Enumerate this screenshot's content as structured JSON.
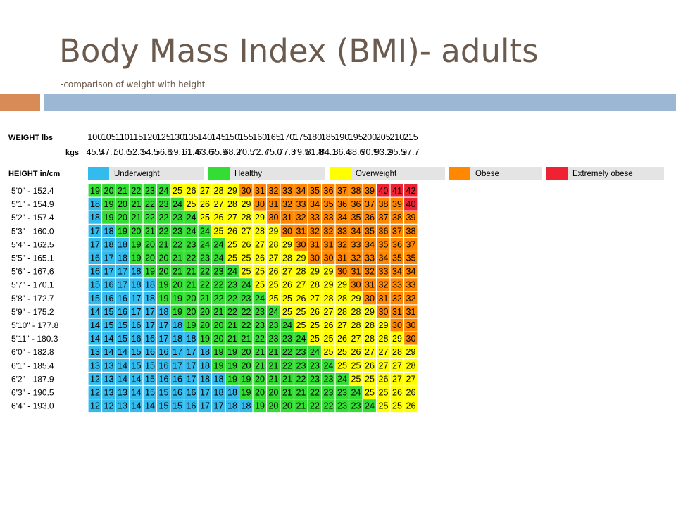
{
  "slide": {
    "title": "Body Mass Index (BMI)- adults",
    "subtitle": "-comparison of weight with height"
  },
  "colors": {
    "title_text": "#6b5a4e",
    "accent_left": "#d88a57",
    "accent_bar": "#9bb7d4",
    "vertical_line": "#c6d4e3"
  },
  "chart_data": {
    "type": "table",
    "row_label_headers": {
      "weight_lbs": "WEIGHT lbs",
      "weight_kgs": "kgs",
      "height": "HEIGHT in/cm"
    },
    "weights_lbs": [
      "100",
      "105",
      "110",
      "115",
      "120",
      "125",
      "130",
      "135",
      "140",
      "145",
      "150",
      "155",
      "160",
      "165",
      "170",
      "175",
      "180",
      "185",
      "190",
      "195",
      "200",
      "205",
      "210",
      "215"
    ],
    "weights_kgs": [
      "45.5",
      "47.7",
      "50.0",
      "52.3",
      "54.5",
      "56.8",
      "59.1",
      "61.4",
      "63.6",
      "65.9",
      "68.2",
      "70.5",
      "72.7",
      "75.0",
      "77.3",
      "79.5",
      "81.8",
      "84.1",
      "86.4",
      "88.6",
      "90.9",
      "93.2",
      "95.5",
      "97.7"
    ],
    "legend": [
      {
        "name": "Underweight",
        "color": "#33bbee"
      },
      {
        "name": "Healthy",
        "color": "#33dd33"
      },
      {
        "name": "Overweight",
        "color": "#ffff00"
      },
      {
        "name": "Obese",
        "color": "#ff8800"
      },
      {
        "name": "Extremely obese",
        "color": "#ee2233"
      }
    ],
    "heights": [
      "5'0\"  -  152.4",
      "5'1\"  -  154.9",
      "5'2\"  -  157.4",
      "5'3\"  -  160.0",
      "5'4\"  -  162.5",
      "5'5\"  -  165.1",
      "5'6\"  -  167.6",
      "5'7\"  -  170.1",
      "5'8\"  -  172.7",
      "5'9\"  -  175.2",
      "5'10\" - 177.8",
      "5'11\" - 180.3",
      "6'0\"  -  182.8",
      "6'1\"  -  185.4",
      "6'2\"  -  187.9",
      "6'3\"  -  190.5",
      "6'4\"  -  193.0"
    ],
    "values": [
      [
        19,
        20,
        21,
        22,
        23,
        24,
        25,
        26,
        27,
        28,
        29,
        30,
        31,
        32,
        33,
        34,
        35,
        36,
        37,
        38,
        39,
        40,
        41,
        42
      ],
      [
        18,
        19,
        20,
        21,
        22,
        23,
        24,
        25,
        26,
        27,
        28,
        29,
        30,
        31,
        32,
        33,
        34,
        35,
        36,
        36,
        37,
        38,
        39,
        40
      ],
      [
        18,
        19,
        20,
        21,
        22,
        22,
        23,
        24,
        25,
        26,
        27,
        28,
        29,
        30,
        31,
        32,
        33,
        33,
        34,
        35,
        36,
        37,
        38,
        39
      ],
      [
        17,
        18,
        19,
        20,
        21,
        22,
        23,
        24,
        24,
        25,
        26,
        27,
        28,
        29,
        30,
        31,
        32,
        32,
        33,
        34,
        35,
        36,
        37,
        38
      ],
      [
        17,
        18,
        18,
        19,
        20,
        21,
        22,
        23,
        24,
        24,
        25,
        26,
        27,
        28,
        29,
        30,
        31,
        31,
        32,
        33,
        34,
        35,
        36,
        37
      ],
      [
        16,
        17,
        18,
        19,
        20,
        20,
        21,
        22,
        23,
        24,
        25,
        25,
        26,
        27,
        28,
        29,
        30,
        30,
        31,
        32,
        33,
        34,
        35,
        35
      ],
      [
        16,
        17,
        17,
        18,
        19,
        20,
        21,
        21,
        22,
        23,
        24,
        25,
        25,
        26,
        27,
        28,
        29,
        29,
        30,
        31,
        32,
        33,
        34,
        34
      ],
      [
        15,
        16,
        17,
        18,
        18,
        19,
        20,
        21,
        22,
        22,
        23,
        24,
        25,
        25,
        26,
        27,
        28,
        29,
        29,
        30,
        31,
        32,
        33,
        33
      ],
      [
        15,
        16,
        16,
        17,
        18,
        19,
        19,
        20,
        21,
        22,
        22,
        23,
        24,
        25,
        25,
        26,
        27,
        28,
        28,
        29,
        30,
        31,
        32,
        32
      ],
      [
        14,
        15,
        16,
        17,
        17,
        18,
        19,
        20,
        20,
        21,
        22,
        22,
        23,
        24,
        25,
        25,
        26,
        27,
        28,
        28,
        29,
        30,
        31,
        31
      ],
      [
        14,
        15,
        15,
        16,
        17,
        17,
        18,
        19,
        20,
        20,
        21,
        22,
        23,
        23,
        24,
        25,
        25,
        26,
        27,
        28,
        28,
        29,
        30,
        30
      ],
      [
        14,
        14,
        15,
        16,
        16,
        17,
        18,
        18,
        19,
        20,
        21,
        21,
        22,
        23,
        23,
        24,
        25,
        25,
        26,
        27,
        28,
        28,
        29,
        30
      ],
      [
        13,
        14,
        14,
        15,
        16,
        16,
        17,
        17,
        18,
        19,
        19,
        20,
        21,
        21,
        22,
        23,
        24,
        25,
        25,
        26,
        27,
        27,
        28,
        29
      ],
      [
        13,
        13,
        14,
        15,
        15,
        16,
        17,
        17,
        18,
        19,
        19,
        20,
        21,
        21,
        22,
        23,
        23,
        24,
        25,
        25,
        26,
        27,
        27,
        28
      ],
      [
        12,
        13,
        14,
        14,
        15,
        16,
        16,
        17,
        18,
        18,
        19,
        19,
        20,
        21,
        21,
        22,
        23,
        23,
        24,
        25,
        25,
        26,
        27,
        27
      ],
      [
        12,
        13,
        13,
        14,
        15,
        15,
        16,
        16,
        17,
        18,
        18,
        19,
        20,
        20,
        21,
        21,
        22,
        23,
        23,
        24,
        25,
        25,
        26,
        26
      ],
      [
        12,
        12,
        13,
        14,
        14,
        15,
        15,
        16,
        17,
        17,
        18,
        18,
        19,
        20,
        20,
        21,
        22,
        22,
        23,
        23,
        24,
        25,
        25,
        26
      ]
    ]
  }
}
